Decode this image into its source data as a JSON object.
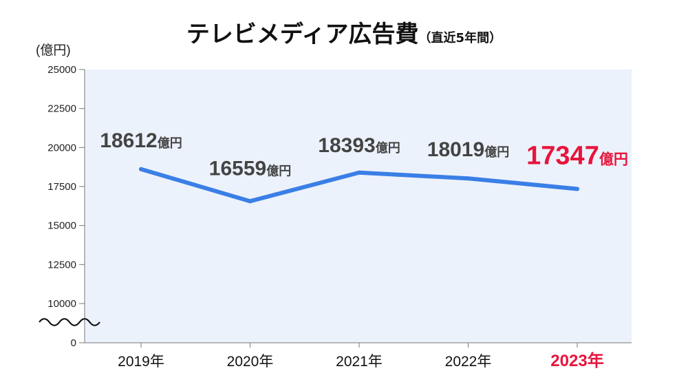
{
  "title": "テレビメディア広告費",
  "subtitle": "（直近5年間）",
  "unit_label": "(億円)",
  "value_suffix": "億円",
  "colors": {
    "line": "#3a7fe6",
    "plot_bg": "#ecf2fb",
    "highlight": "#e8143c",
    "label_text": "#444444",
    "axis": "#777777"
  },
  "chart_data": {
    "type": "line",
    "categories": [
      "2019年",
      "2020年",
      "2021年",
      "2022年",
      "2023年"
    ],
    "values": [
      18612,
      16559,
      18393,
      18019,
      17347
    ],
    "value_labels": [
      "18612",
      "16559",
      "18393",
      "18019",
      "17347"
    ],
    "highlight_index": 4,
    "yticks": [
      0,
      10000,
      12500,
      15000,
      17500,
      20000,
      22500,
      25000
    ],
    "ytick_labels": [
      "0",
      "10000",
      "12500",
      "15000",
      "17500",
      "20000",
      "22500",
      "25000"
    ],
    "ylim": [
      10000,
      25000
    ],
    "axis_break": true,
    "grid": false,
    "xlabel": "",
    "ylabel": "(億円)"
  }
}
